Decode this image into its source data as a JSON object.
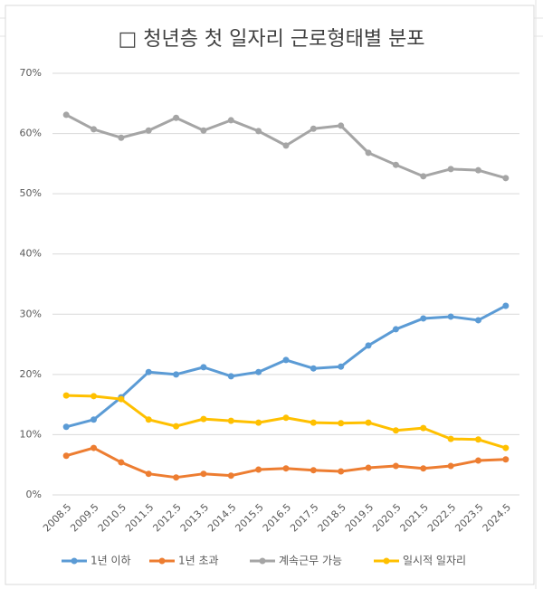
{
  "chart_data": {
    "type": "line",
    "title": "□ 청년층 첫 일자리 근로형태별 분포",
    "categories": [
      "2008.5",
      "2009.5",
      "2010.5",
      "2011.5",
      "2012.5",
      "2013.5",
      "2014.5",
      "2015.5",
      "2016.5",
      "2017.5",
      "2018.5",
      "2019.5",
      "2020.5",
      "2021.5",
      "2022.5",
      "2023.5",
      "2024.5"
    ],
    "series": [
      {
        "name": "1년 이하",
        "color": "#5b9bd5",
        "values": [
          11.3,
          12.5,
          16.2,
          20.4,
          20.0,
          21.2,
          19.7,
          20.4,
          22.4,
          21.0,
          21.3,
          24.8,
          27.5,
          29.3,
          29.6,
          29.0,
          31.4
        ]
      },
      {
        "name": "1년 초과",
        "color": "#ed7d31",
        "values": [
          6.5,
          7.8,
          5.4,
          3.5,
          2.9,
          3.5,
          3.2,
          4.2,
          4.4,
          4.1,
          3.9,
          4.5,
          4.8,
          4.4,
          4.8,
          5.7,
          5.9
        ]
      },
      {
        "name": "계속근무 가능",
        "color": "#a5a5a5",
        "values": [
          63.1,
          60.7,
          59.3,
          60.5,
          62.6,
          60.5,
          62.2,
          60.4,
          58.0,
          60.8,
          61.3,
          56.8,
          54.8,
          52.9,
          54.1,
          53.9,
          52.6
        ]
      },
      {
        "name": "일시적 일자리",
        "color": "#ffc000",
        "values": [
          16.5,
          16.4,
          15.9,
          12.5,
          11.4,
          12.6,
          12.3,
          12.0,
          12.8,
          12.0,
          11.9,
          12.0,
          10.7,
          11.1,
          9.3,
          9.2,
          7.8
        ]
      }
    ],
    "ylim": [
      0,
      70
    ],
    "yticks": [
      {
        "value": 0,
        "label": "0%"
      },
      {
        "value": 10,
        "label": "10%"
      },
      {
        "value": 20,
        "label": "20%"
      },
      {
        "value": 30,
        "label": "30%"
      },
      {
        "value": 40,
        "label": "40%"
      },
      {
        "value": 50,
        "label": "50%"
      },
      {
        "value": 60,
        "label": "60%"
      },
      {
        "value": 70,
        "label": "70%"
      }
    ],
    "grid": true,
    "legend": "bottom"
  }
}
